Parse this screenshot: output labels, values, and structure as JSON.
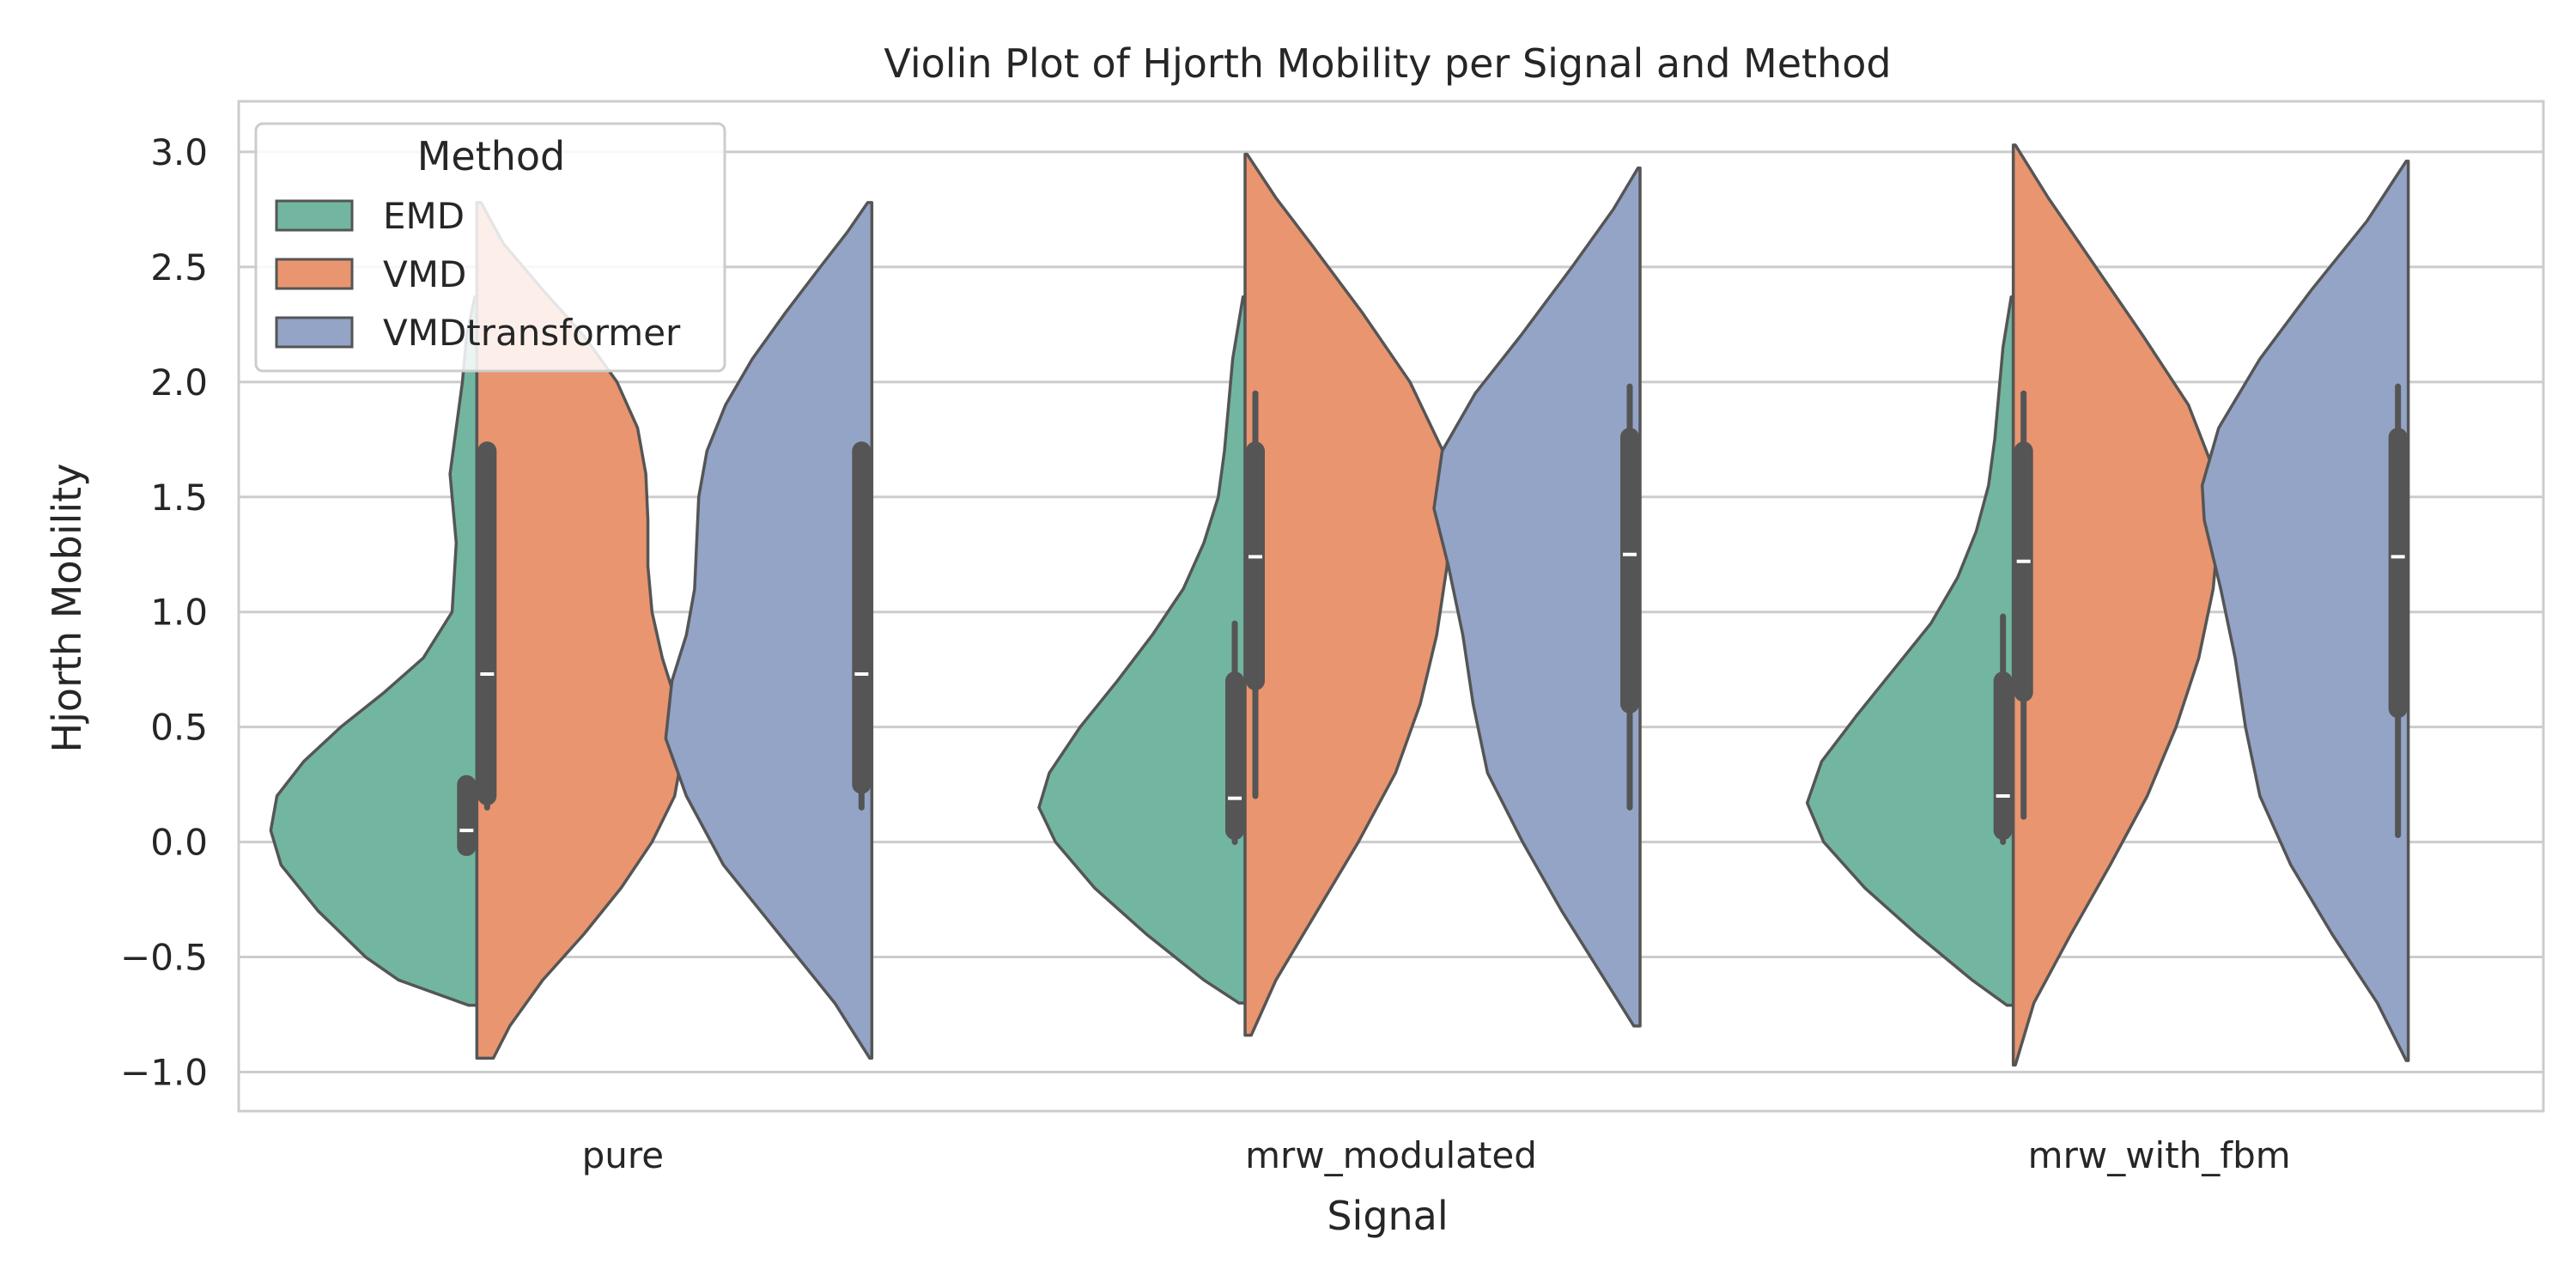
{
  "chart_data": {
    "type": "violin",
    "title": "Violin Plot of Hjorth Mobility per Signal and Method",
    "xlabel": "Signal",
    "ylabel": "Hjorth Mobility",
    "categories": [
      "pure",
      "mrw_modulated",
      "mrw_with_fbm"
    ],
    "ylim": [
      -1.17,
      3.22
    ],
    "yticks": [
      -1.0,
      -0.5,
      0.0,
      0.5,
      1.0,
      1.5,
      2.0,
      2.5,
      3.0
    ],
    "ytick_labels": [
      "−1.0",
      "−0.5",
      "0.0",
      "0.5",
      "1.0",
      "1.5",
      "2.0",
      "2.5",
      "3.0"
    ],
    "grid": "horizontal",
    "legend": {
      "title": "Method",
      "placement": "top-left"
    },
    "series": [
      {
        "name": "EMD",
        "color": "#72b6a1",
        "side": "left",
        "violins": [
          {
            "min": -0.71,
            "max": 2.37,
            "q1": -0.02,
            "median": 0.05,
            "q3": 0.25,
            "whisker_low": -0.03,
            "whisker_high": 0.25,
            "density": [
              [
                -0.71,
                0.04
              ],
              [
                -0.6,
                0.38
              ],
              [
                -0.5,
                0.54
              ],
              [
                -0.3,
                0.77
              ],
              [
                -0.1,
                0.95
              ],
              [
                0.05,
                1.0
              ],
              [
                0.2,
                0.97
              ],
              [
                0.35,
                0.84
              ],
              [
                0.5,
                0.66
              ],
              [
                0.65,
                0.45
              ],
              [
                0.8,
                0.26
              ],
              [
                1.0,
                0.12
              ],
              [
                1.3,
                0.1
              ],
              [
                1.6,
                0.13
              ],
              [
                1.8,
                0.1
              ],
              [
                2.0,
                0.07
              ],
              [
                2.2,
                0.05
              ],
              [
                2.37,
                0.01
              ]
            ]
          },
          {
            "min": -0.7,
            "max": 2.37,
            "q1": 0.05,
            "median": 0.19,
            "q3": 0.7,
            "whisker_low": 0.0,
            "whisker_high": 0.95,
            "density": [
              [
                -0.7,
                0.03
              ],
              [
                -0.6,
                0.2
              ],
              [
                -0.4,
                0.48
              ],
              [
                -0.2,
                0.73
              ],
              [
                0.0,
                0.92
              ],
              [
                0.15,
                1.0
              ],
              [
                0.3,
                0.95
              ],
              [
                0.5,
                0.8
              ],
              [
                0.7,
                0.62
              ],
              [
                0.9,
                0.45
              ],
              [
                1.1,
                0.3
              ],
              [
                1.3,
                0.2
              ],
              [
                1.5,
                0.13
              ],
              [
                1.7,
                0.1
              ],
              [
                1.9,
                0.08
              ],
              [
                2.1,
                0.06
              ],
              [
                2.37,
                0.01
              ]
            ]
          },
          {
            "min": -0.71,
            "max": 2.37,
            "q1": 0.05,
            "median": 0.2,
            "q3": 0.7,
            "whisker_low": 0.0,
            "whisker_high": 0.98,
            "density": [
              [
                -0.71,
                0.03
              ],
              [
                -0.6,
                0.2
              ],
              [
                -0.4,
                0.47
              ],
              [
                -0.2,
                0.72
              ],
              [
                0.0,
                0.92
              ],
              [
                0.17,
                1.0
              ],
              [
                0.35,
                0.93
              ],
              [
                0.55,
                0.76
              ],
              [
                0.75,
                0.58
              ],
              [
                0.95,
                0.4
              ],
              [
                1.15,
                0.27
              ],
              [
                1.35,
                0.18
              ],
              [
                1.55,
                0.12
              ],
              [
                1.75,
                0.09
              ],
              [
                1.95,
                0.07
              ],
              [
                2.15,
                0.05
              ],
              [
                2.37,
                0.01
              ]
            ]
          }
        ]
      },
      {
        "name": "VMD",
        "color": "#e9956f",
        "side": "right",
        "violins": [
          {
            "min": -0.94,
            "max": 2.78,
            "q1": 0.2,
            "median": 0.73,
            "q3": 1.7,
            "whisker_low": 0.15,
            "whisker_high": 1.7,
            "density": [
              [
                -0.94,
                0.08
              ],
              [
                -0.8,
                0.16
              ],
              [
                -0.6,
                0.32
              ],
              [
                -0.4,
                0.52
              ],
              [
                -0.2,
                0.7
              ],
              [
                0.0,
                0.85
              ],
              [
                0.2,
                0.96
              ],
              [
                0.4,
                1.0
              ],
              [
                0.6,
                0.97
              ],
              [
                0.8,
                0.9
              ],
              [
                1.0,
                0.85
              ],
              [
                1.2,
                0.83
              ],
              [
                1.4,
                0.83
              ],
              [
                1.6,
                0.82
              ],
              [
                1.8,
                0.78
              ],
              [
                2.0,
                0.68
              ],
              [
                2.2,
                0.52
              ],
              [
                2.4,
                0.32
              ],
              [
                2.6,
                0.13
              ],
              [
                2.78,
                0.02
              ]
            ]
          },
          {
            "min": -0.84,
            "max": 2.99,
            "q1": 0.7,
            "median": 1.24,
            "q3": 1.7,
            "whisker_low": 0.2,
            "whisker_high": 1.95,
            "density": [
              [
                -0.84,
                0.03
              ],
              [
                -0.6,
                0.15
              ],
              [
                -0.3,
                0.35
              ],
              [
                0.0,
                0.55
              ],
              [
                0.3,
                0.73
              ],
              [
                0.6,
                0.85
              ],
              [
                0.9,
                0.93
              ],
              [
                1.2,
                0.98
              ],
              [
                1.45,
                1.0
              ],
              [
                1.7,
                0.96
              ],
              [
                2.0,
                0.8
              ],
              [
                2.3,
                0.57
              ],
              [
                2.6,
                0.32
              ],
              [
                2.8,
                0.15
              ],
              [
                2.99,
                0.01
              ]
            ]
          },
          {
            "min": -0.97,
            "max": 3.03,
            "q1": 0.65,
            "median": 1.22,
            "q3": 1.7,
            "whisker_low": 0.11,
            "whisker_high": 1.95,
            "density": [
              [
                -0.97,
                0.01
              ],
              [
                -0.7,
                0.1
              ],
              [
                -0.4,
                0.28
              ],
              [
                -0.1,
                0.47
              ],
              [
                0.2,
                0.65
              ],
              [
                0.5,
                0.79
              ],
              [
                0.8,
                0.9
              ],
              [
                1.1,
                0.97
              ],
              [
                1.4,
                1.0
              ],
              [
                1.6,
                0.98
              ],
              [
                1.9,
                0.85
              ],
              [
                2.2,
                0.63
              ],
              [
                2.5,
                0.4
              ],
              [
                2.8,
                0.17
              ],
              [
                3.03,
                0.01
              ]
            ]
          }
        ]
      },
      {
        "name": "VMDtransformer",
        "color": "#94a4c6",
        "side": "left",
        "violins": [
          {
            "min": -0.94,
            "max": 2.78,
            "q1": 0.25,
            "median": 0.73,
            "q3": 1.7,
            "whisker_low": 0.15,
            "whisker_high": 1.7,
            "density": [
              [
                -0.94,
                0.01
              ],
              [
                -0.7,
                0.18
              ],
              [
                -0.4,
                0.45
              ],
              [
                -0.1,
                0.72
              ],
              [
                0.2,
                0.9
              ],
              [
                0.45,
                1.0
              ],
              [
                0.7,
                0.97
              ],
              [
                0.9,
                0.9
              ],
              [
                1.1,
                0.86
              ],
              [
                1.3,
                0.85
              ],
              [
                1.5,
                0.84
              ],
              [
                1.7,
                0.8
              ],
              [
                1.9,
                0.71
              ],
              [
                2.1,
                0.58
              ],
              [
                2.3,
                0.42
              ],
              [
                2.5,
                0.25
              ],
              [
                2.65,
                0.12
              ],
              [
                2.78,
                0.02
              ]
            ]
          },
          {
            "min": -0.8,
            "max": 2.93,
            "q1": 0.6,
            "median": 1.25,
            "q3": 1.76,
            "whisker_low": 0.15,
            "whisker_high": 1.98,
            "density": [
              [
                -0.8,
                0.03
              ],
              [
                -0.6,
                0.17
              ],
              [
                -0.3,
                0.38
              ],
              [
                0.0,
                0.57
              ],
              [
                0.3,
                0.74
              ],
              [
                0.6,
                0.81
              ],
              [
                0.9,
                0.86
              ],
              [
                1.2,
                0.93
              ],
              [
                1.45,
                1.0
              ],
              [
                1.7,
                0.96
              ],
              [
                1.95,
                0.8
              ],
              [
                2.2,
                0.58
              ],
              [
                2.5,
                0.33
              ],
              [
                2.75,
                0.13
              ],
              [
                2.93,
                0.01
              ]
            ]
          },
          {
            "min": -0.95,
            "max": 2.96,
            "q1": 0.58,
            "median": 1.24,
            "q3": 1.76,
            "whisker_low": 0.03,
            "whisker_high": 1.98,
            "density": [
              [
                -0.95,
                0.01
              ],
              [
                -0.7,
                0.15
              ],
              [
                -0.4,
                0.37
              ],
              [
                -0.1,
                0.57
              ],
              [
                0.2,
                0.72
              ],
              [
                0.5,
                0.79
              ],
              [
                0.8,
                0.84
              ],
              [
                1.1,
                0.91
              ],
              [
                1.4,
                0.99
              ],
              [
                1.55,
                1.0
              ],
              [
                1.8,
                0.92
              ],
              [
                2.1,
                0.72
              ],
              [
                2.4,
                0.47
              ],
              [
                2.7,
                0.2
              ],
              [
                2.96,
                0.01
              ]
            ]
          }
        ]
      }
    ]
  }
}
